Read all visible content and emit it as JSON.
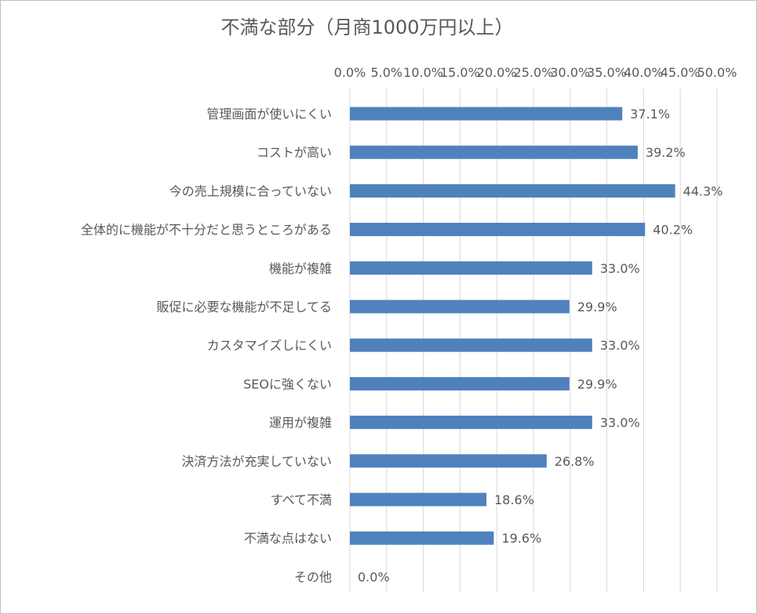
{
  "chart_data": {
    "type": "bar",
    "orientation": "horizontal",
    "title": "不満な部分（月商1000万円以上）",
    "categories": [
      "管理画面が使いにくい",
      "コストが高い",
      "今の売上規模に合っていない",
      "全体的に機能が不十分だと思うところがある",
      "機能が複雑",
      "販促に必要な機能が不足してる",
      "カスタマイズしにくい",
      "SEOに強くない",
      "運用が複雑",
      "決済方法が充実していない",
      "すべて不満",
      "不満な点はない",
      "その他"
    ],
    "values": [
      37.1,
      39.2,
      44.3,
      40.2,
      33.0,
      29.9,
      33.0,
      29.9,
      33.0,
      26.8,
      18.6,
      19.6,
      0.0
    ],
    "value_labels": [
      "37.1%",
      "39.2%",
      "44.3%",
      "40.2%",
      "33.0%",
      "29.9%",
      "33.0%",
      "29.9%",
      "33.0%",
      "26.8%",
      "18.6%",
      "19.6%",
      "0.0%"
    ],
    "xlim": [
      0,
      50
    ],
    "x_ticks": [
      0,
      5,
      10,
      15,
      20,
      25,
      30,
      35,
      40,
      45,
      50
    ],
    "x_tick_labels": [
      "0.0%",
      "5.0%",
      "10.0%",
      "15.0%",
      "20.0%",
      "25.0%",
      "30.0%",
      "35.0%",
      "40.0%",
      "45.0%",
      "50.0%"
    ],
    "x_axis_position": "top",
    "grid": true,
    "legend": "none",
    "colors": {
      "bar": "#4F81BD",
      "gridline": "#d9d9d9",
      "text": "#595959"
    }
  }
}
